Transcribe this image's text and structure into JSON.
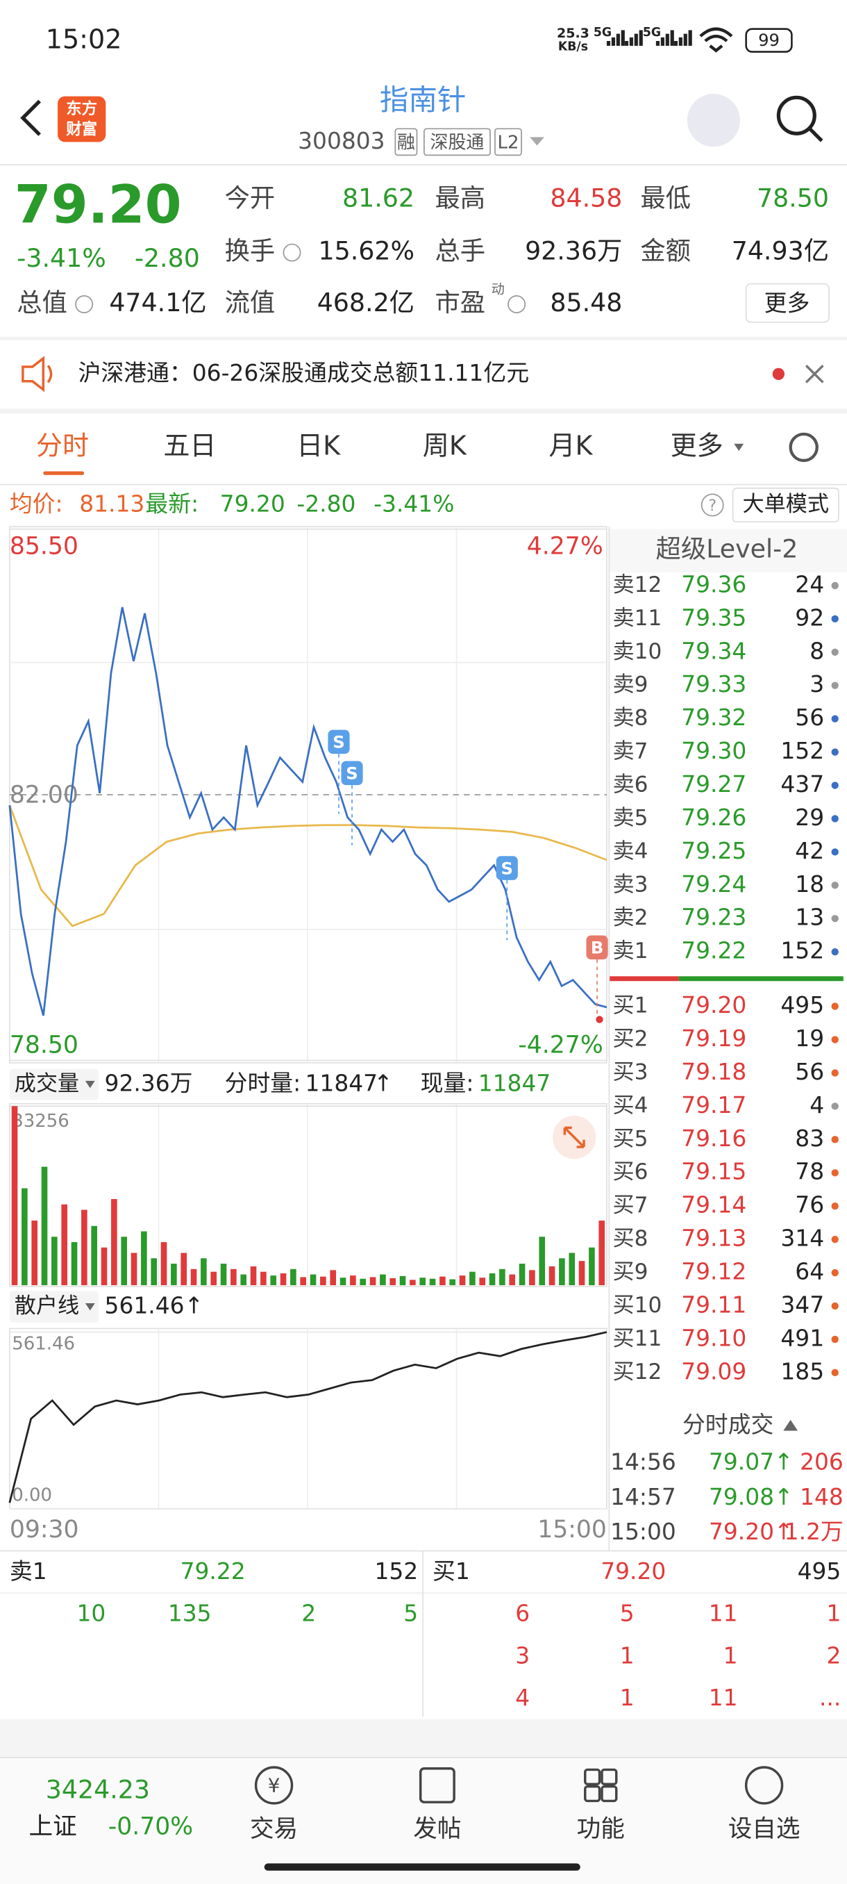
{
  "status_bar": {
    "time": "15:02",
    "net_speed": [
      "25.3",
      "KB/s"
    ],
    "network": [
      "5G",
      "5G"
    ],
    "battery": "99"
  },
  "header": {
    "logo": [
      "东方",
      "财富"
    ],
    "title": "指南针",
    "code": "300803",
    "tags": [
      "融",
      "深股通",
      "L2"
    ]
  },
  "quote": {
    "price": "79.20",
    "change_pct": "-3.41%",
    "change": "-2.80",
    "fields": [
      {
        "label": "今开",
        "value": "81.62"
      },
      {
        "label": "最高",
        "value": "84.58"
      },
      {
        "label": "最低",
        "value": "78.50"
      },
      {
        "label": "换手",
        "value": "15.62%"
      },
      {
        "label": "总手",
        "value": "92.36万"
      },
      {
        "label": "金额",
        "value": "74.93亿"
      },
      {
        "label": "总值",
        "value": "474.1亿"
      },
      {
        "label": "流值",
        "value": "468.2亿"
      },
      {
        "label": "市盈",
        "superscript": "动",
        "value": "85.48"
      }
    ],
    "more_button": "更多"
  },
  "notice": "沪深港通：06-26深股通成交总额11.11亿元",
  "tabs": [
    "分时",
    "五日",
    "日K",
    "周K",
    "月K",
    "更多"
  ],
  "info_line": {
    "avg_label": "均价:",
    "avg": "81.13",
    "latest_label": "最新:",
    "latest": "79.20",
    "change": "-2.80",
    "change_pct": "-3.41%",
    "help": "?",
    "mode_button": "大单模式"
  },
  "chart_data": [
    {
      "type": "line",
      "ylim": [
        78.5,
        85.5
      ],
      "yticks": [
        {
          "value": 85.5,
          "label": "85.50"
        },
        {
          "value": 82,
          "label": "82.00"
        },
        {
          "value": 78.5,
          "label": "78.50"
        }
      ],
      "y2lim": [
        -4.27,
        4.27
      ],
      "y2ticks": [
        {
          "value": 4.27,
          "label": "4.27%"
        },
        {
          "value": -4.27,
          "label": "-4.27%"
        }
      ],
      "series": [
        {
          "color": "#3a6fc4",
          "values": [
            81.86,
            80.43,
            79.64,
            79.09,
            80.43,
            81.38,
            82.65,
            82.97,
            82.02,
            83.6,
            84.47,
            83.76,
            84.39,
            83.6,
            82.65,
            82.17,
            81.7,
            82.02,
            81.54,
            81.7,
            81.54,
            82.65,
            81.86,
            82.17,
            82.49,
            82.33,
            82.17,
            82.89,
            82.49,
            82.17,
            81.7,
            81.54,
            81.22,
            81.54,
            81.38,
            81.54,
            81.22,
            81.07,
            80.75,
            80.59,
            80.67,
            80.75,
            80.91,
            81.07,
            80.75,
            80.12,
            79.8,
            79.56,
            79.8,
            79.48,
            79.56,
            79.4,
            79.24,
            79.2
          ]
        },
        {
          "color": "#e8b84a",
          "values": [
            81.86,
            80.75,
            80.27,
            80.43,
            81.07,
            81.38,
            81.49,
            81.54,
            81.57,
            81.59,
            81.6,
            81.6,
            81.59,
            81.57,
            81.56,
            81.54,
            81.51,
            81.43,
            81.3,
            81.14
          ]
        }
      ],
      "trade_markers": [
        "S",
        "S",
        "S",
        "B"
      ]
    },
    {
      "type": "bar",
      "ylim": [
        0,
        33256
      ],
      "yticks": [
        33256
      ],
      "values": [
        33256,
        18000,
        12000,
        22000,
        9000,
        15000,
        8000,
        14000,
        11000,
        7000,
        16000,
        9000,
        6000,
        10000,
        5000,
        8000,
        4000,
        6000,
        3000,
        5000,
        2500,
        4000,
        3000,
        2000,
        3500,
        2500,
        1800,
        2200,
        3000,
        1500,
        2000,
        1600,
        2800,
        1400,
        1800,
        1200,
        1500,
        2000,
        1300,
        1700,
        1000,
        1400,
        1200,
        1600,
        1100,
        1800,
        2500,
        1400,
        2200,
        3000,
        2000,
        4000,
        2800,
        9000,
        3500,
        5000,
        6000,
        4500,
        7000,
        12000
      ],
      "colors": [
        "#e03a3a",
        "#2a9a2a",
        "#e03a3a",
        "#2a9a2a",
        "#2a9a2a",
        "#e03a3a",
        "#2a9a2a",
        "#e03a3a",
        "#2a9a2a",
        "#e03a3a",
        "#e03a3a",
        "#2a9a2a",
        "#e03a3a",
        "#2a9a2a",
        "#2a9a2a",
        "#e03a3a",
        "#2a9a2a",
        "#e03a3a",
        "#e03a3a",
        "#2a9a2a",
        "#e03a3a",
        "#2a9a2a",
        "#e03a3a",
        "#2a9a2a",
        "#e03a3a",
        "#e03a3a",
        "#2a9a2a",
        "#e03a3a",
        "#2a9a2a",
        "#e03a3a",
        "#2a9a2a",
        "#e03a3a",
        "#e03a3a",
        "#2a9a2a",
        "#e03a3a",
        "#2a9a2a",
        "#e03a3a",
        "#2a9a2a",
        "#e03a3a",
        "#2a9a2a",
        "#e03a3a",
        "#2a9a2a",
        "#2a9a2a",
        "#e03a3a",
        "#2a9a2a",
        "#e03a3a",
        "#2a9a2a",
        "#e03a3a",
        "#2a9a2a",
        "#2a9a2a",
        "#e03a3a",
        "#2a9a2a",
        "#e03a3a",
        "#2a9a2a",
        "#e03a3a",
        "#2a9a2a",
        "#2a9a2a",
        "#e03a3a",
        "#2a9a2a",
        "#e03a3a"
      ]
    },
    {
      "type": "line",
      "ylim": [
        0,
        561.46
      ],
      "yticks": [
        561.46,
        {
          "value": 0,
          "label": "0.00"
        }
      ],
      "series": [
        {
          "color": "#222222",
          "values": [
            19,
            286,
            344,
            267,
            325,
            344,
            332,
            344,
            363,
            370,
            355,
            363,
            370,
            355,
            363,
            382,
            401,
            409,
            439,
            458,
            447,
            477,
            496,
            485,
            508,
            523,
            535,
            546,
            561.46
          ]
        }
      ]
    }
  ],
  "volume_header": {
    "selector": "成交量",
    "total": "92.36万",
    "period_label": "分时量:",
    "period_value": "11847",
    "period_arrow": "↑",
    "current_label": "现量:",
    "current_value": "11847"
  },
  "retail_header": {
    "selector": "散户线",
    "value": "561.46↑"
  },
  "time_axis": [
    "09:30",
    "15:00"
  ],
  "order_book": {
    "title": "超级Level-2",
    "asks": [
      {
        "label": "卖12",
        "price": "79.36",
        "volume": "24",
        "dot": "#999999"
      },
      {
        "label": "卖11",
        "price": "79.35",
        "volume": "92",
        "dot": "#3a6fc4"
      },
      {
        "label": "卖10",
        "price": "79.34",
        "volume": "8",
        "dot": "#999999"
      },
      {
        "label": "卖9",
        "price": "79.33",
        "volume": "3",
        "dot": "#999999"
      },
      {
        "label": "卖8",
        "price": "79.32",
        "volume": "56",
        "dot": "#3a6fc4"
      },
      {
        "label": "卖7",
        "price": "79.30",
        "volume": "152",
        "dot": "#3a6fc4"
      },
      {
        "label": "卖6",
        "price": "79.27",
        "volume": "437",
        "dot": "#3a6fc4"
      },
      {
        "label": "卖5",
        "price": "79.26",
        "volume": "29",
        "dot": "#3a6fc4"
      },
      {
        "label": "卖4",
        "price": "79.25",
        "volume": "42",
        "dot": "#3a6fc4"
      },
      {
        "label": "卖3",
        "price": "79.24",
        "volume": "18",
        "dot": "#999999"
      },
      {
        "label": "卖2",
        "price": "79.23",
        "volume": "13",
        "dot": "#999999"
      },
      {
        "label": "卖1",
        "price": "79.22",
        "volume": "152",
        "dot": "#3a6fc4"
      }
    ],
    "bids": [
      {
        "label": "买1",
        "price": "79.20",
        "volume": "495",
        "dot": "#e8642c"
      },
      {
        "label": "买2",
        "price": "79.19",
        "volume": "19",
        "dot": "#e8642c"
      },
      {
        "label": "买3",
        "price": "79.18",
        "volume": "56",
        "dot": "#e8642c"
      },
      {
        "label": "买4",
        "price": "79.17",
        "volume": "4",
        "dot": "#999999"
      },
      {
        "label": "买5",
        "price": "79.16",
        "volume": "83",
        "dot": "#e8642c"
      },
      {
        "label": "买6",
        "price": "79.15",
        "volume": "78",
        "dot": "#e8642c"
      },
      {
        "label": "买7",
        "price": "79.14",
        "volume": "76",
        "dot": "#e8642c"
      },
      {
        "label": "买8",
        "price": "79.13",
        "volume": "314",
        "dot": "#e8642c"
      },
      {
        "label": "买9",
        "price": "79.12",
        "volume": "64",
        "dot": "#e8642c"
      },
      {
        "label": "买10",
        "price": "79.11",
        "volume": "347",
        "dot": "#e8642c"
      },
      {
        "label": "买11",
        "price": "79.10",
        "volume": "491",
        "dot": "#e8642c"
      },
      {
        "label": "买12",
        "price": "79.09",
        "volume": "185",
        "dot": "#e8642c"
      }
    ]
  },
  "trades": {
    "title": "分时成交",
    "rows": [
      {
        "time": "14:56",
        "price": "79.07↑",
        "volume": "206"
      },
      {
        "time": "14:57",
        "price": "79.08↑",
        "volume": "148"
      },
      {
        "time": "15:00",
        "price": "79.20↑",
        "volume": "1.2万"
      }
    ]
  },
  "level1": {
    "ask_label": "卖1",
    "ask_price": "79.22",
    "ask_volume": "152",
    "bid_label": "买1",
    "bid_price": "79.20",
    "bid_volume": "495",
    "ask_queue": [
      [
        "10",
        "135",
        "2",
        "5"
      ]
    ],
    "bid_queue": [
      [
        "6",
        "5",
        "11",
        "1"
      ],
      [
        "3",
        "1",
        "1",
        "2"
      ],
      [
        "4",
        "1",
        "11",
        "..."
      ]
    ]
  },
  "index_bar": {
    "value": "3424.23",
    "name": "上证",
    "change": "-0.70%"
  },
  "nav": [
    {
      "label": "交易",
      "icon": "¥"
    },
    {
      "label": "发帖"
    },
    {
      "label": "功能"
    },
    {
      "label": "设自选"
    }
  ]
}
